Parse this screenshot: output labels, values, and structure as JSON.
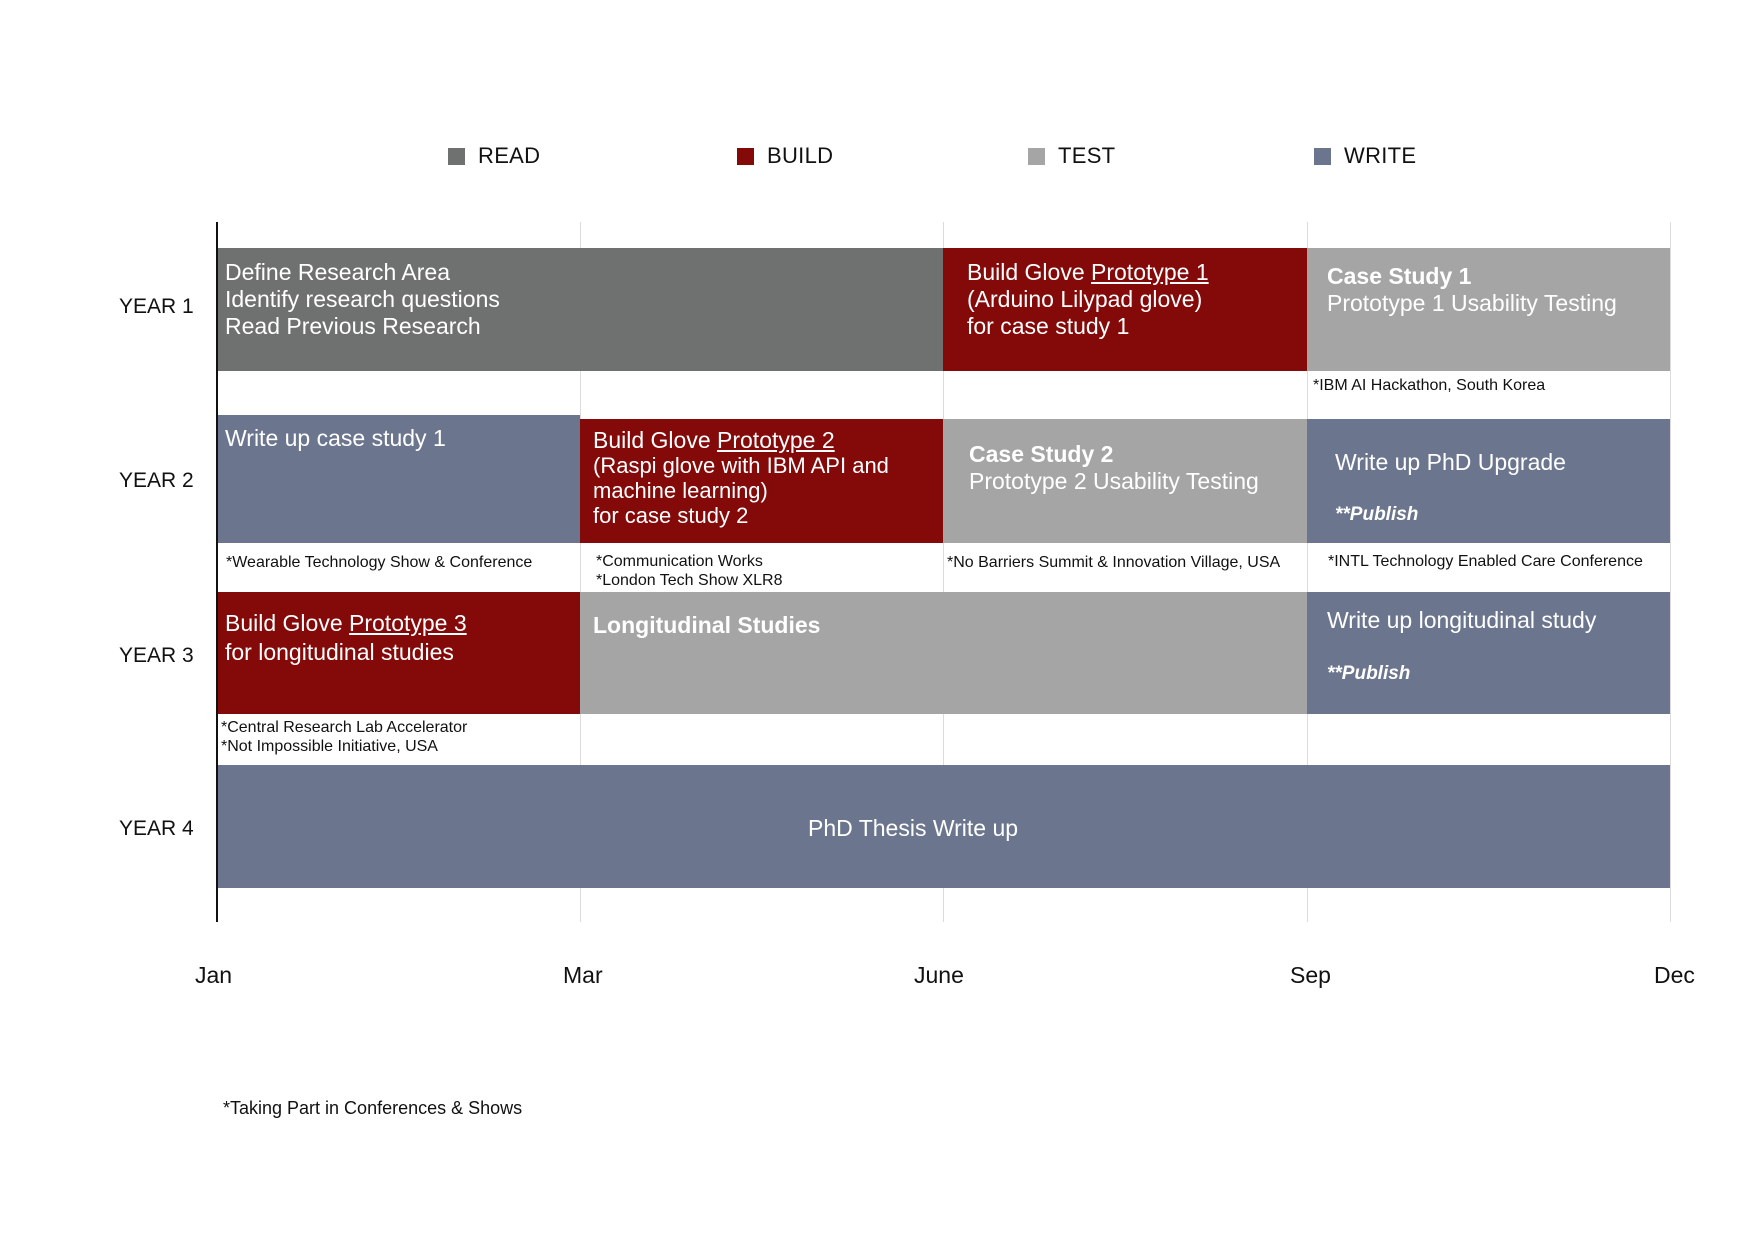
{
  "chart_data": {
    "type": "gantt",
    "legend": [
      {
        "name": "READ",
        "color": "#6f7170"
      },
      {
        "name": "BUILD",
        "color": "#840a0a"
      },
      {
        "name": "TEST",
        "color": "#a5a5a5"
      },
      {
        "name": "WRITE",
        "color": "#6b768e"
      }
    ],
    "x_ticks": [
      "Jan",
      "Mar",
      "June",
      "Sep",
      "Dec"
    ],
    "rows": [
      "YEAR 1",
      "YEAR 2",
      "YEAR 3",
      "YEAR 4"
    ],
    "tasks": [
      {
        "row": 0,
        "start": 0,
        "end": 2,
        "category": "READ",
        "lines": [
          "Define Research Area",
          "Identify research questions",
          "Read Previous Research"
        ]
      },
      {
        "row": 0,
        "start": 2,
        "end": 3,
        "category": "BUILD",
        "lines": [
          "Build Glove Prototype 1",
          "(Arduino Lilypad glove)",
          "for case study 1"
        ]
      },
      {
        "row": 0,
        "start": 3,
        "end": 4,
        "category": "TEST",
        "lines": [
          "Case Study 1",
          "Prototype 1 Usability Testing"
        ]
      },
      {
        "row": 1,
        "start": 0,
        "end": 1,
        "category": "WRITE",
        "lines": [
          "Write up case study 1"
        ]
      },
      {
        "row": 1,
        "start": 1,
        "end": 2,
        "category": "BUILD",
        "lines": [
          "Build Glove Prototype 2",
          "(Raspi glove with IBM API and",
          "machine learning)",
          "for case study 2"
        ]
      },
      {
        "row": 1,
        "start": 2,
        "end": 3,
        "category": "TEST",
        "lines": [
          "Case Study 2",
          "Prototype 2 Usability Testing"
        ]
      },
      {
        "row": 1,
        "start": 3,
        "end": 4,
        "category": "WRITE",
        "lines": [
          "Write up PhD Upgrade",
          "**Publish"
        ]
      },
      {
        "row": 2,
        "start": 0,
        "end": 1,
        "category": "BUILD",
        "lines": [
          "Build Glove Prototype 3",
          "for longitudinal studies"
        ]
      },
      {
        "row": 2,
        "start": 1,
        "end": 3,
        "category": "TEST",
        "lines": [
          "Longitudinal Studies"
        ]
      },
      {
        "row": 2,
        "start": 3,
        "end": 4,
        "category": "WRITE",
        "lines": [
          "Write up longitudinal study",
          "**Publish"
        ]
      },
      {
        "row": 3,
        "start": 0,
        "end": 4,
        "category": "WRITE",
        "lines": [
          "PhD Thesis Write up"
        ]
      }
    ],
    "events": [
      {
        "row": 0,
        "start": 3,
        "lines": [
          "*IBM AI Hackathon, South Korea"
        ]
      },
      {
        "row": 1,
        "start": 0,
        "lines": [
          "*Wearable Technology Show & Conference"
        ]
      },
      {
        "row": 1,
        "start": 1,
        "lines": [
          "*Communication Works",
          "*London Tech Show XLR8"
        ]
      },
      {
        "row": 1,
        "start": 2,
        "lines": [
          "*No Barriers Summit & Innovation Village, USA"
        ]
      },
      {
        "row": 1,
        "start": 3,
        "lines": [
          "*INTL Technology Enabled Care Conference"
        ]
      },
      {
        "row": 2,
        "start": 0,
        "lines": [
          "*Central Research Lab Accelerator",
          "*Not Impossible Initiative, USA"
        ]
      }
    ],
    "footnote": "*Taking Part in Conferences & Shows"
  }
}
